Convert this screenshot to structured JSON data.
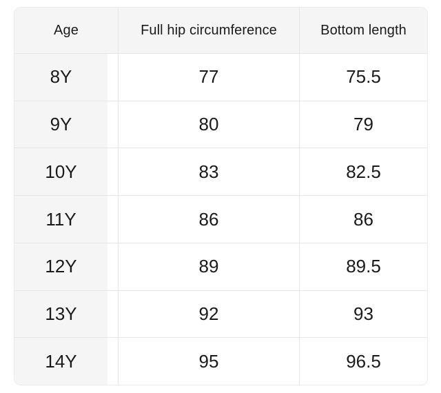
{
  "table": {
    "columns": [
      "Age",
      "Full hip circumference",
      "Bottom length"
    ],
    "rows": [
      {
        "age": "8Y",
        "hip": "77",
        "bottom": "75.5"
      },
      {
        "age": "9Y",
        "hip": "80",
        "bottom": "79"
      },
      {
        "age": "10Y",
        "hip": "83",
        "bottom": "82.5"
      },
      {
        "age": "11Y",
        "hip": "86",
        "bottom": "86"
      },
      {
        "age": "12Y",
        "hip": "89",
        "bottom": "89.5"
      },
      {
        "age": "13Y",
        "hip": "92",
        "bottom": "93"
      },
      {
        "age": "14Y",
        "hip": "95",
        "bottom": "96.5"
      }
    ]
  },
  "colors": {
    "background": "#ffffff",
    "panel_bg": "#f5f5f6",
    "grid_line": "#e6e6e6",
    "outer_border": "#ebebeb",
    "text": "#1a1a1a"
  },
  "chart_data": {
    "type": "table",
    "columns": [
      "Age",
      "Full hip circumference",
      "Bottom length"
    ],
    "rows": [
      [
        "8Y",
        77,
        75.5
      ],
      [
        "9Y",
        80,
        79
      ],
      [
        "10Y",
        83,
        82.5
      ],
      [
        "11Y",
        86,
        86
      ],
      [
        "12Y",
        89,
        89.5
      ],
      [
        "13Y",
        92,
        93
      ],
      [
        "14Y",
        95,
        96.5
      ]
    ]
  }
}
